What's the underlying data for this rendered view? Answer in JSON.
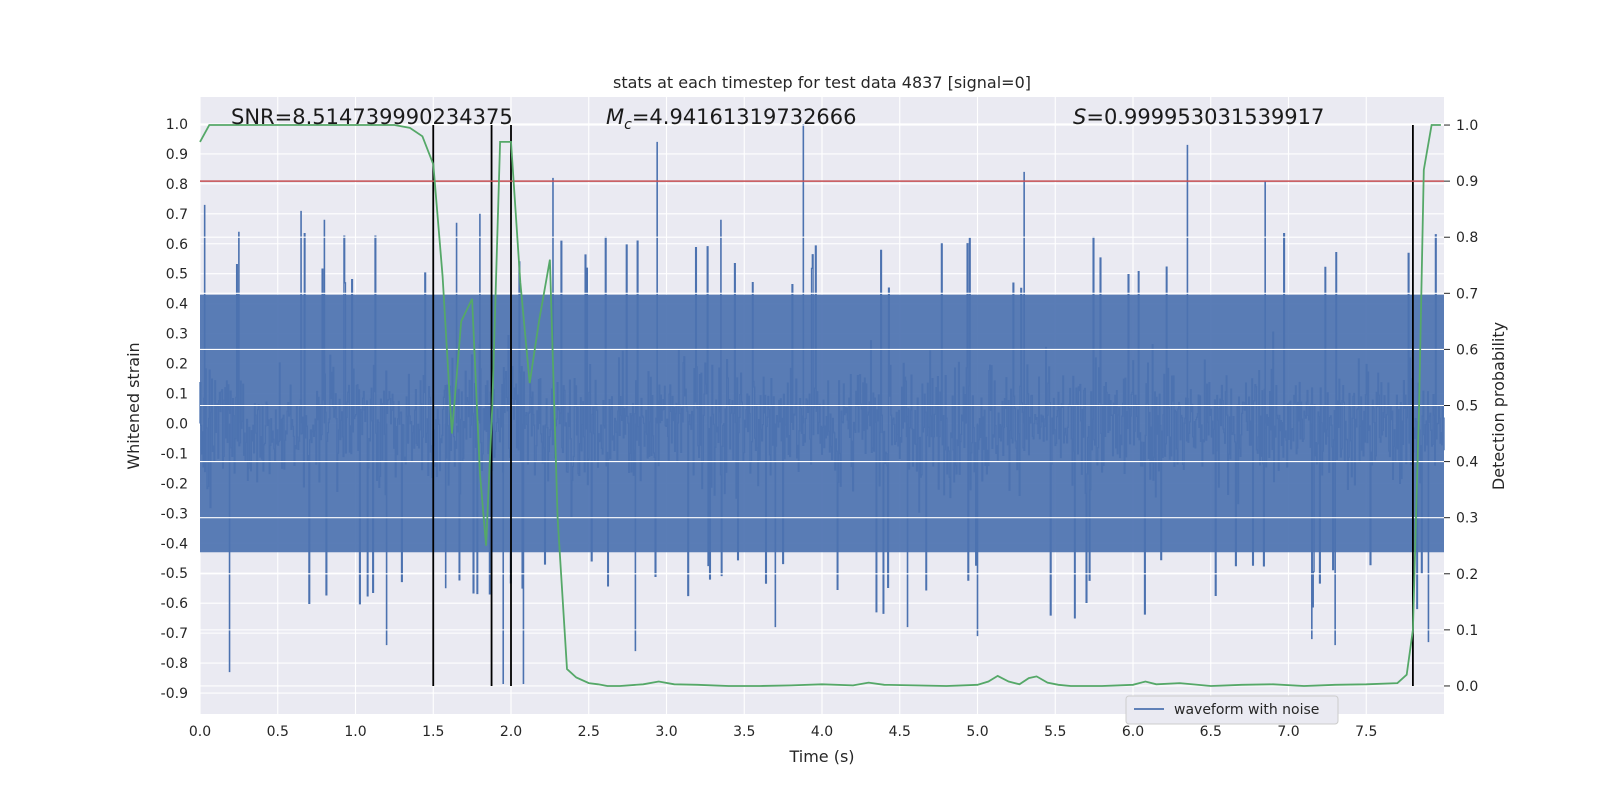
{
  "chart_data": {
    "type": "line",
    "title": "stats at each timestep for test data 4837 [signal=0]",
    "xlabel": "Time (s)",
    "ylabel_left": "Whitened strain",
    "ylabel_right": "Detection probability",
    "xlim": [
      0.0,
      8.0
    ],
    "ylim_left": [
      -0.97,
      1.09
    ],
    "ylim_right": [
      -0.05,
      1.05
    ],
    "x_ticks": [
      "0.0",
      "0.5",
      "1.0",
      "1.5",
      "2.0",
      "2.5",
      "3.0",
      "3.5",
      "4.0",
      "4.5",
      "5.0",
      "5.5",
      "6.0",
      "6.5",
      "7.0",
      "7.5"
    ],
    "y_left_ticks": [
      "1.0",
      "0.9",
      "0.8",
      "0.7",
      "0.6",
      "0.5",
      "0.4",
      "0.3",
      "0.2",
      "0.1",
      "0.0",
      "-0.1",
      "-0.2",
      "-0.3",
      "-0.4",
      "-0.5",
      "-0.6",
      "-0.7",
      "-0.8",
      "-0.9"
    ],
    "y_right_ticks": [
      "1.0",
      "0.9",
      "0.8",
      "0.7",
      "0.6",
      "0.5",
      "0.4",
      "0.3",
      "0.2",
      "0.1",
      "0.0"
    ],
    "grid": true,
    "legend": {
      "position": "lower-right",
      "entries": [
        "waveform with noise"
      ]
    },
    "annotations": {
      "snr_label": "SNR=8.514739990234375",
      "mc_symbol": "M",
      "mc_subscript": "c",
      "mc_value": "=4.94161319732666",
      "s_symbol": "S",
      "s_value": "=0.999953031539917"
    },
    "threshold_right": 0.9,
    "vertical_lines_x": [
      1.5,
      1.875,
      2.0,
      7.8
    ],
    "vertical_lines_ymax": 1.0,
    "vertical_lines_ymin": 0.0,
    "waveform": {
      "name": "waveform with noise",
      "envelope": [
        0.43,
        -0.43
      ],
      "spikes": [
        {
          "x": 0.03,
          "y": 0.73
        },
        {
          "x": 0.19,
          "y": -0.83
        },
        {
          "x": 0.25,
          "y": 0.64
        },
        {
          "x": 0.65,
          "y": 0.71
        },
        {
          "x": 0.8,
          "y": 0.68
        },
        {
          "x": 1.2,
          "y": -0.74
        },
        {
          "x": 1.58,
          "y": -0.55
        },
        {
          "x": 1.65,
          "y": 0.67
        },
        {
          "x": 1.8,
          "y": 0.7
        },
        {
          "x": 1.95,
          "y": -0.87
        },
        {
          "x": 2.08,
          "y": -0.87
        },
        {
          "x": 2.27,
          "y": 0.82
        },
        {
          "x": 2.94,
          "y": 0.94
        },
        {
          "x": 2.8,
          "y": -0.76
        },
        {
          "x": 3.35,
          "y": 0.68
        },
        {
          "x": 3.88,
          "y": 1.0
        },
        {
          "x": 3.7,
          "y": -0.68
        },
        {
          "x": 4.55,
          "y": -0.68
        },
        {
          "x": 5.0,
          "y": -0.71
        },
        {
          "x": 5.3,
          "y": 0.84
        },
        {
          "x": 6.35,
          "y": 0.93
        },
        {
          "x": 6.85,
          "y": 0.81
        },
        {
          "x": 7.15,
          "y": -0.72
        },
        {
          "x": 7.3,
          "y": -0.74
        },
        {
          "x": 7.9,
          "y": -0.73
        }
      ]
    },
    "detection_probability": {
      "x": [
        0.0,
        0.06,
        0.13,
        0.25,
        0.5,
        0.75,
        1.0,
        1.25,
        1.35,
        1.43,
        1.5,
        1.56,
        1.62,
        1.68,
        1.75,
        1.8,
        1.84,
        1.88,
        1.93,
        2.0,
        2.06,
        2.12,
        2.18,
        2.25,
        2.3,
        2.36,
        2.42,
        2.5,
        2.56,
        2.62,
        2.7,
        2.85,
        2.95,
        3.05,
        3.2,
        3.4,
        3.6,
        3.8,
        4.0,
        4.2,
        4.3,
        4.4,
        4.6,
        4.8,
        5.0,
        5.07,
        5.13,
        5.2,
        5.27,
        5.33,
        5.38,
        5.45,
        5.52,
        5.6,
        5.8,
        6.0,
        6.08,
        6.15,
        6.3,
        6.5,
        6.7,
        6.9,
        7.1,
        7.3,
        7.5,
        7.7,
        7.76,
        7.8,
        7.84,
        7.87,
        7.92,
        7.98
      ],
      "y": [
        0.97,
        1.0,
        1.0,
        1.0,
        1.0,
        1.0,
        1.0,
        1.0,
        0.995,
        0.98,
        0.93,
        0.73,
        0.45,
        0.65,
        0.69,
        0.38,
        0.25,
        0.5,
        0.97,
        0.97,
        0.72,
        0.54,
        0.65,
        0.76,
        0.3,
        0.03,
        0.015,
        0.005,
        0.003,
        0.0,
        0.0,
        0.003,
        0.008,
        0.003,
        0.002,
        0.0,
        0.0,
        0.001,
        0.003,
        0.001,
        0.006,
        0.002,
        0.001,
        0.0,
        0.002,
        0.008,
        0.018,
        0.008,
        0.003,
        0.014,
        0.017,
        0.006,
        0.002,
        0.0,
        0.0,
        0.002,
        0.008,
        0.003,
        0.005,
        0.0,
        0.002,
        0.003,
        0.0,
        0.002,
        0.003,
        0.005,
        0.02,
        0.1,
        0.5,
        0.92,
        1.0,
        1.0
      ]
    },
    "colors": {
      "background": "#eaeaf2",
      "grid": "#ffffff",
      "waveform": "#4c72b0",
      "probability": "#55a868",
      "threshold": "#c44e52",
      "vlines": "#000000"
    }
  }
}
